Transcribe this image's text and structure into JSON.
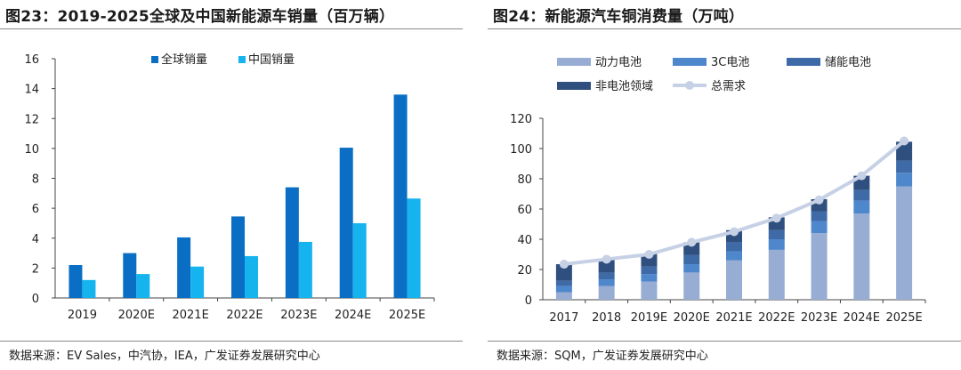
{
  "left": {
    "title": "图23：2019-2025全球及中国新能源车销量（百万辆）",
    "source": "数据来源：EV Sales，中汽协，IEA，广发证券发展研究中心"
  },
  "right": {
    "title": "图24：新能源汽车铜消费量（万吨）",
    "source": "数据来源：SQM，广发证券发展研究中心"
  },
  "colors": {
    "global": "#0a6fc4",
    "china": "#16b4ee",
    "power": "#98add3",
    "c3": "#4f87cc",
    "storage": "#3e6aa8",
    "non_battery": "#2f4f7e",
    "total": "#c6d1e6"
  },
  "chart_data": [
    {
      "type": "bar",
      "title": "图23：2019-2025全球及中国新能源车销量（百万辆）",
      "categories": [
        "2019",
        "2020E",
        "2021E",
        "2022E",
        "2023E",
        "2024E",
        "2025E"
      ],
      "series": [
        {
          "name": "全球销量",
          "values": [
            2.2,
            3.0,
            4.05,
            5.45,
            7.4,
            10.05,
            13.6
          ]
        },
        {
          "name": "中国销量",
          "values": [
            1.2,
            1.6,
            2.1,
            2.8,
            3.75,
            5.0,
            6.65
          ]
        }
      ],
      "ylim": [
        0,
        16
      ],
      "yticks": [
        0,
        2,
        4,
        6,
        8,
        10,
        12,
        14,
        16
      ],
      "legend": "top-center"
    },
    {
      "type": "bar",
      "stacked": true,
      "title": "图24：新能源汽车铜消费量（万吨）",
      "categories": [
        "2017",
        "2018",
        "2019E",
        "2020E",
        "2021E",
        "2022E",
        "2023E",
        "2024E",
        "2025E"
      ],
      "series": [
        {
          "name": "动力电池",
          "values": [
            5,
            9,
            12,
            18,
            26,
            33,
            44,
            57,
            75
          ]
        },
        {
          "name": "3C电池",
          "values": [
            4,
            4.5,
            5,
            5.5,
            6,
            7,
            8,
            8.5,
            9
          ]
        },
        {
          "name": "储能电池",
          "values": [
            3.5,
            4.5,
            5,
            6,
            6,
            6,
            6.5,
            7,
            8
          ]
        },
        {
          "name": "非电池领域",
          "values": [
            11,
            9,
            8.5,
            8.5,
            8,
            8.5,
            8,
            9.5,
            12.5
          ]
        },
        {
          "name": "总需求",
          "type": "line",
          "values": [
            23.5,
            26.8,
            30,
            38,
            45,
            54,
            66,
            82,
            105
          ]
        }
      ],
      "ylim": [
        0,
        120
      ],
      "yticks": [
        0,
        20,
        40,
        60,
        80,
        100,
        120
      ],
      "legend": "top"
    }
  ]
}
